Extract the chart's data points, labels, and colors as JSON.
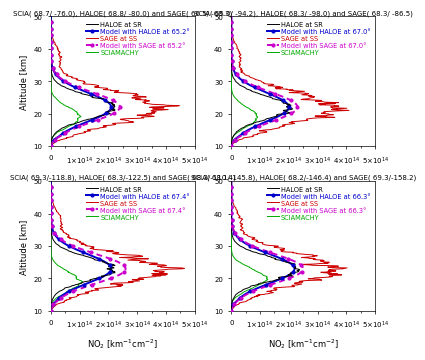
{
  "panels": [
    {
      "title": "SCIA( 68.7/ -76.0), HALOE( 68.8/ -80.0) and SAGE( 66.5/ -68.3)",
      "legend_labels": [
        "HALOE at SR",
        "Model with HALOE at 65.2°",
        "SAGE at SS",
        "Model with SAGE at 65.2°",
        "SCIAMACHY"
      ],
      "haloe_angle": "65.2"
    },
    {
      "title": "SCIA( 65.0/ -94.2), HALOE( 68.3/ -98.0) and SAGE( 68.3/ -86.5)",
      "legend_labels": [
        "HALOE at SR",
        "Model with HALOE at 67.0°",
        "SAGE at SS",
        "Model with SAGE at 67.0°",
        "SCIAMACHY"
      ],
      "haloe_angle": "67.0"
    },
    {
      "title": "SCIA( 69.3/-118.8), HALOE( 68.3/-122.5) and SAGE( 68.3/-110.4)",
      "legend_labels": [
        "HALOE at SR",
        "Model with HALOE at 67.4°",
        "SAGE at SS",
        "Model with SAGE at 67.4°",
        "SCIAMACHY"
      ],
      "haloe_angle": "67.4"
    },
    {
      "title": "SCIA( 68.1/-145.8), HALOE( 68.2/-146.4) and SAGE( 69.3/-158.2)",
      "legend_labels": [
        "HALOE at SR",
        "Model with HALOE at 66.3°",
        "SAGE at SS",
        "Model with SAGE at 66.3°",
        "SCIAMACHY"
      ],
      "haloe_angle": "66.3"
    }
  ],
  "colors": {
    "haloe": "#000000",
    "model_haloe": "#0000cc",
    "sage": "#cc0000",
    "model_sage": "#cc00cc",
    "sciamachy": "#00aa00"
  },
  "ylabel": "Altitude [km]",
  "xlabel": "NO$_2$ [km$^{-1}$cm$^{-2}$]",
  "ylim": [
    10,
    50
  ],
  "xlim": [
    0,
    500000000000000.0
  ],
  "yticks": [
    10,
    20,
    30,
    40,
    50
  ],
  "title_fontsize": 5.0,
  "label_fontsize": 6.0,
  "legend_fontsize": 4.8,
  "tick_fontsize": 5.0
}
